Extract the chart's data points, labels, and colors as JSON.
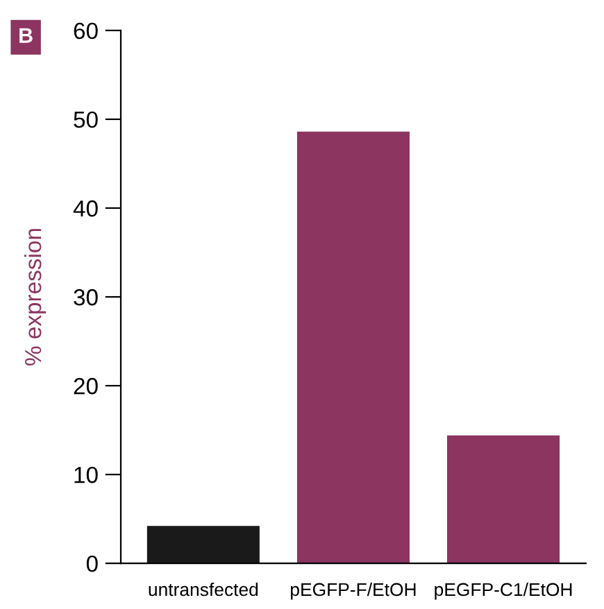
{
  "chart_data": {
    "type": "bar",
    "ylabel": "% expression",
    "annotations": [
      "B"
    ],
    "categories": [
      "untransfected",
      "pEGFP-F/EtOH",
      "pEGFP-C1/EtOH"
    ],
    "values": [
      4.2,
      48.6,
      14.4
    ],
    "colors": [
      "#1a1a1a",
      "#8b3560",
      "#8b3560"
    ],
    "ylim": [
      0,
      60
    ],
    "yticks": [
      0,
      10,
      20,
      30,
      40,
      50,
      60
    ],
    "grid": false,
    "legend": false
  }
}
